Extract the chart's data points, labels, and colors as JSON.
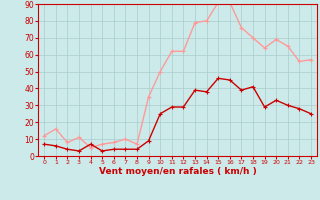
{
  "x": [
    0,
    1,
    2,
    3,
    4,
    5,
    6,
    7,
    8,
    9,
    10,
    11,
    12,
    13,
    14,
    15,
    16,
    17,
    18,
    19,
    20,
    21,
    22,
    23
  ],
  "y_mean": [
    7,
    6,
    4,
    3,
    7,
    3,
    4,
    4,
    4,
    9,
    25,
    29,
    29,
    39,
    38,
    46,
    45,
    39,
    41,
    29,
    33,
    30,
    28,
    25
  ],
  "y_gust": [
    12,
    16,
    8,
    11,
    5,
    7,
    8,
    10,
    7,
    35,
    50,
    62,
    62,
    79,
    80,
    91,
    91,
    76,
    70,
    64,
    69,
    65,
    56,
    57
  ],
  "bg_color": "#cceaea",
  "grid_color": "#aacccc",
  "mean_color": "#cc0000",
  "gust_color": "#ff9999",
  "axis_label_color": "#cc0000",
  "xlabel": "Vent moyen/en rafales ( km/h )",
  "ylim": [
    0,
    90
  ],
  "yticks": [
    0,
    10,
    20,
    30,
    40,
    50,
    60,
    70,
    80,
    90
  ],
  "marker_size": 3.5,
  "linewidth": 1.0
}
